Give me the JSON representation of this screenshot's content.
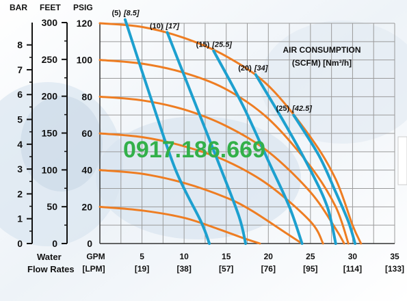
{
  "headers": {
    "bar": "BAR",
    "feet": "FEET",
    "psig": "PSIG"
  },
  "air_title": {
    "line1": "AIR CONSUMPTION",
    "line2": "(SCFM) [Nm³/h]"
  },
  "water_label": {
    "line1": "Water",
    "line2": "Flow Rates"
  },
  "watermark": "0917.186.669",
  "colors": {
    "pressure_curve": "#ee7d22",
    "air_curve": "#1da0cf",
    "grid": "#9a9a9a"
  },
  "chart_data": {
    "type": "line",
    "x_unit_label": "GPM",
    "x_unit_label_alt": "[LPM]",
    "xlim": [
      0,
      35
    ],
    "ylim": [
      0,
      120
    ],
    "x_ticks": [
      {
        "v": 5,
        "gpm": "5",
        "lpm": "[19]"
      },
      {
        "v": 10,
        "gpm": "10",
        "lpm": "[38]"
      },
      {
        "v": 15,
        "gpm": "15",
        "lpm": "[57]"
      },
      {
        "v": 20,
        "gpm": "20",
        "lpm": "[76]"
      },
      {
        "v": 25,
        "gpm": "25",
        "lpm": "[95]"
      },
      {
        "v": 30,
        "gpm": "30",
        "lpm": "[114]"
      },
      {
        "v": 35,
        "gpm": "35",
        "lpm": "[133]"
      }
    ],
    "psig_ticks": [
      "0",
      "20",
      "40",
      "60",
      "80",
      "100",
      "120"
    ],
    "feet_ticks": [
      "0",
      "50",
      "100",
      "150",
      "200",
      "250",
      "300"
    ],
    "bar_ticks": [
      "0",
      "1",
      "2",
      "3",
      "4",
      "5",
      "6",
      "7",
      "8"
    ],
    "grid": true,
    "pressure_curves": [
      {
        "values": [
          [
            0,
            120
          ],
          [
            5,
            118
          ],
          [
            10,
            112
          ],
          [
            15,
            102
          ],
          [
            20,
            86
          ],
          [
            25,
            58
          ],
          [
            28,
            35
          ],
          [
            30,
            10
          ],
          [
            31,
            0
          ]
        ]
      },
      {
        "values": [
          [
            0,
            100
          ],
          [
            5,
            98
          ],
          [
            10,
            93
          ],
          [
            15,
            84
          ],
          [
            20,
            68
          ],
          [
            25,
            42
          ],
          [
            28,
            20
          ],
          [
            29.5,
            0
          ]
        ]
      },
      {
        "values": [
          [
            0,
            80
          ],
          [
            5,
            78
          ],
          [
            10,
            73
          ],
          [
            15,
            64
          ],
          [
            20,
            50
          ],
          [
            25,
            28
          ],
          [
            28,
            8
          ],
          [
            29,
            0
          ]
        ]
      },
      {
        "values": [
          [
            0,
            60
          ],
          [
            5,
            58
          ],
          [
            10,
            53
          ],
          [
            15,
            45
          ],
          [
            20,
            32
          ],
          [
            25,
            12
          ],
          [
            26.5,
            0
          ]
        ]
      },
      {
        "values": [
          [
            0,
            40
          ],
          [
            5,
            38
          ],
          [
            10,
            33
          ],
          [
            15,
            25
          ],
          [
            18,
            18
          ],
          [
            22,
            6
          ],
          [
            24,
            0
          ]
        ]
      },
      {
        "values": [
          [
            0,
            20
          ],
          [
            5,
            18
          ],
          [
            10,
            14
          ],
          [
            14,
            8
          ],
          [
            17,
            3
          ],
          [
            19,
            0
          ]
        ]
      }
    ],
    "air_curves": [
      {
        "label": "(5)",
        "label_alt": "[8.5]",
        "values": [
          [
            3,
            122
          ],
          [
            6,
            80
          ],
          [
            9,
            40
          ],
          [
            12,
            12
          ],
          [
            13,
            0
          ]
        ]
      },
      {
        "label": "(10)",
        "label_alt": "[17]",
        "values": [
          [
            8,
            115
          ],
          [
            11,
            80
          ],
          [
            14,
            45
          ],
          [
            16.5,
            15
          ],
          [
            17.3,
            0
          ]
        ]
      },
      {
        "label": "(15)",
        "label_alt": "[25.5]",
        "values": [
          [
            13.5,
            105
          ],
          [
            17,
            75
          ],
          [
            20,
            45
          ],
          [
            22.5,
            20
          ],
          [
            24,
            0
          ]
        ]
      },
      {
        "label": "(20)",
        "label_alt": "[34]",
        "values": [
          [
            18.5,
            92
          ],
          [
            22,
            65
          ],
          [
            25,
            40
          ],
          [
            27,
            20
          ],
          [
            28,
            0
          ]
        ]
      },
      {
        "label": "(25)",
        "label_alt": "[42.5]",
        "values": [
          [
            23,
            70
          ],
          [
            26,
            48
          ],
          [
            28,
            28
          ],
          [
            29.5,
            12
          ],
          [
            30.3,
            0
          ]
        ]
      }
    ]
  }
}
